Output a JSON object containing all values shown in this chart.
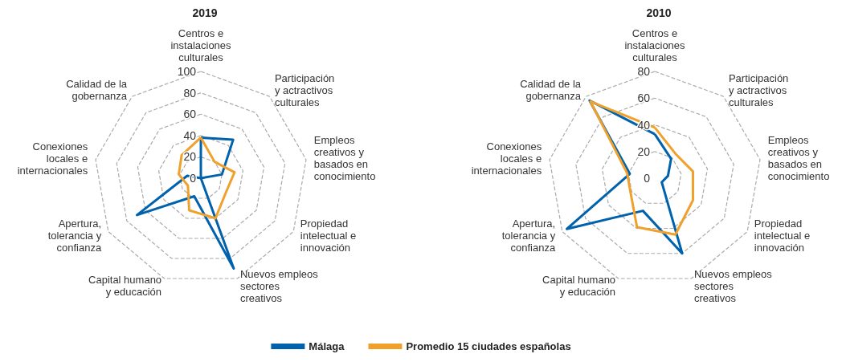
{
  "chart_data": [
    {
      "type": "radar",
      "title": "2019",
      "categories": [
        "Centros e instalaciones culturales",
        "Participación y actractivos culturales",
        "Empleos creativos y basados en conocimiento",
        "Propiedad intelectual e innovación",
        "Nuevos empleos sectores creativos",
        "Capital humano y educación",
        "Apertura, tolerancia y confianza",
        "Conexiones locales e internacionales",
        "Calidad de la gobernanza"
      ],
      "series": [
        {
          "name": "Málaga",
          "color": "#0062ad",
          "values": [
            38,
            47,
            20,
            0,
            90,
            18,
            69,
            13,
            0
          ]
        },
        {
          "name": "Promedio 15 ciudades españolas",
          "color": "#f0a12b",
          "values": [
            38,
            20,
            32,
            27,
            40,
            32,
            14,
            21,
            28
          ]
        }
      ],
      "ylim": [
        0,
        100
      ],
      "yticks": [
        0,
        20,
        40,
        60,
        80,
        100
      ],
      "legend": "bottom",
      "line_style": "solid",
      "marker": "none",
      "grid": true
    },
    {
      "type": "radar",
      "title": "2010",
      "categories": [
        "Centros e instalaciones culturales",
        "Participación y actractivos culturales",
        "Empleos creativos y basados en conocimiento",
        "Propiedad intelectual e innovación",
        "Nuevos empleos sectores creativos",
        "Capital humano y educación",
        "Apertura, tolerancia y confianza",
        "Conexiones locales e internacionales",
        "Calidad de la gobernanza"
      ],
      "series": [
        {
          "name": "Málaga",
          "color": "#0062ad",
          "values": [
            33,
            19,
            10,
            6,
            60,
            26,
            76,
            19,
            76
          ]
        },
        {
          "name": "Promedio 15 ciudades españolas",
          "color": "#f0a12b",
          "values": [
            38,
            24,
            29,
            33,
            45,
            39,
            21,
            21,
            75
          ]
        }
      ],
      "ylim": [
        0,
        80
      ],
      "yticks": [
        0,
        20,
        40,
        60,
        80
      ],
      "legend": "bottom",
      "line_style": "solid",
      "marker": "none",
      "grid": true
    }
  ]
}
